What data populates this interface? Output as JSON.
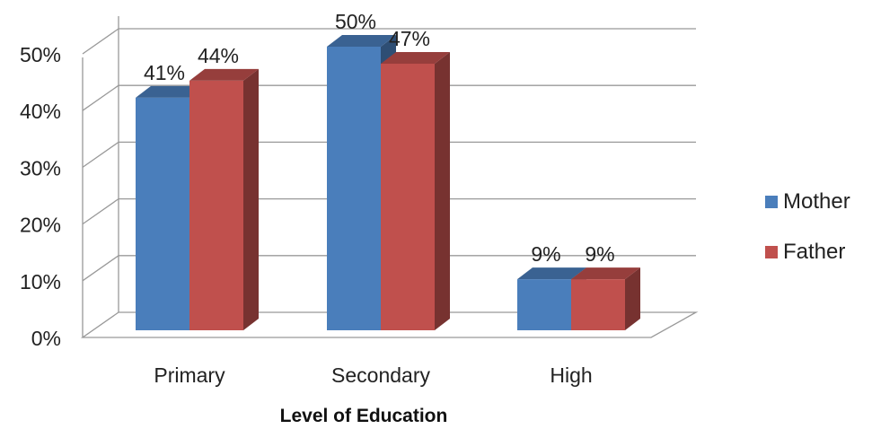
{
  "chart_data": {
    "type": "bar",
    "categories": [
      "Primary",
      "Secondary",
      "High"
    ],
    "series": [
      {
        "name": "Mother",
        "values": [
          41,
          50,
          9
        ],
        "labels": [
          "41%",
          "50%",
          "9%"
        ],
        "color": "#4a7ebb"
      },
      {
        "name": "Father",
        "values": [
          44,
          47,
          9
        ],
        "labels": [
          "44%",
          "47%",
          "9%"
        ],
        "color": "#c0504d"
      }
    ],
    "xlabel": "Level of Education",
    "ylabel": "",
    "ylim": [
      0,
      50
    ],
    "yticks": [
      "0%",
      "10%",
      "20%",
      "30%",
      "40%",
      "50%"
    ],
    "grid": true,
    "legend": "right",
    "style": "3d-clustered-column"
  }
}
